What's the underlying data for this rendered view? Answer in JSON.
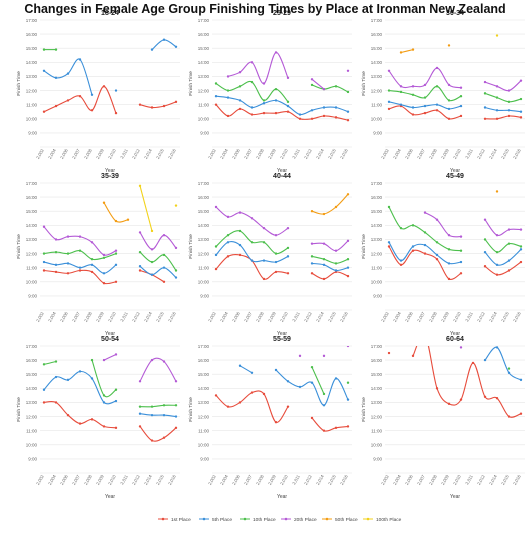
{
  "title": "Changes in Female Age Group Finishing Times by Place at Ironman New Zealand",
  "chart_data": {
    "type": "line",
    "title": "Changes in Female Age Group Finishing Times by Place at Ironman New Zealand",
    "ylabel": "Finish Time",
    "xlabel": "Year",
    "x": [
      "2,002",
      "2,004",
      "2,006",
      "2,007",
      "2,008",
      "2,009",
      "2,010",
      "2,011",
      "2,012",
      "2,014",
      "2,015",
      "2,016"
    ],
    "yticks": [
      "9:00",
      "10:00",
      "11:00",
      "12:00",
      "13:00",
      "14:00",
      "15:00",
      "16:00",
      "17:00"
    ],
    "ylim": [
      8,
      17
    ],
    "legend_position": "bottom",
    "series_meta": [
      {
        "name": "1st Place",
        "color": "#e74c3c"
      },
      {
        "name": "5th Place",
        "color": "#3a8fd9"
      },
      {
        "name": "10th Place",
        "color": "#4cbf4c"
      },
      {
        "name": "20th Place",
        "color": "#b45ad6"
      },
      {
        "name": "50th Place",
        "color": "#f39c12"
      },
      {
        "name": "100th Place",
        "color": "#f2d21b"
      }
    ],
    "panels": [
      {
        "title": "18-24",
        "series": {
          "1st Place": [
            10.5,
            10.9,
            11.3,
            11.6,
            10.6,
            12.3,
            10.4,
            null,
            11.0,
            10.8,
            10.9,
            11.2
          ],
          "5th Place": [
            13.4,
            12.9,
            13.2,
            14.2,
            11.7,
            null,
            12.0,
            null,
            null,
            14.9,
            15.6,
            15.1
          ],
          "10th Place": [
            14.9,
            14.9,
            null,
            null,
            null,
            null,
            null,
            null,
            null,
            null,
            null,
            null
          ],
          "20th Place": [],
          "50th Place": [],
          "100th Place": []
        }
      },
      {
        "title": "25-29",
        "series": {
          "1st Place": [
            11.0,
            10.2,
            10.7,
            10.3,
            10.4,
            10.4,
            10.5,
            10.0,
            10.0,
            10.2,
            10.1,
            9.9
          ],
          "5th Place": [
            11.6,
            11.5,
            11.3,
            10.8,
            11.1,
            11.3,
            10.9,
            10.3,
            10.6,
            10.8,
            10.8,
            10.5
          ],
          "10th Place": [
            12.5,
            12.0,
            12.3,
            12.6,
            11.3,
            12.1,
            11.2,
            null,
            12.4,
            12.1,
            12.3,
            11.9
          ],
          "20th Place": [
            null,
            13.0,
            13.3,
            14.0,
            12.5,
            14.7,
            12.9,
            null,
            12.8,
            12.1,
            null,
            13.4
          ],
          "50th Place": [],
          "100th Place": []
        }
      },
      {
        "title": "30-34",
        "series": {
          "1st Place": [
            10.7,
            10.9,
            10.3,
            10.4,
            10.6,
            10.0,
            10.2,
            null,
            10.0,
            10.0,
            10.2,
            10.1
          ],
          "5th Place": [
            11.2,
            11.0,
            10.8,
            10.9,
            11.0,
            10.7,
            10.9,
            null,
            10.8,
            10.6,
            10.6,
            10.5
          ],
          "10th Place": [
            12.0,
            11.9,
            11.7,
            11.5,
            12.3,
            11.3,
            11.6,
            null,
            11.8,
            11.5,
            11.2,
            11.4
          ],
          "20th Place": [
            13.4,
            12.3,
            12.3,
            12.4,
            13.6,
            12.4,
            12.2,
            null,
            12.6,
            12.3,
            12.0,
            12.7
          ],
          "50th Place": [
            null,
            14.7,
            14.9,
            null,
            null,
            15.2,
            null,
            null,
            null,
            null,
            null,
            null
          ],
          "100th Place": [
            null,
            null,
            null,
            null,
            null,
            null,
            null,
            null,
            null,
            15.9,
            null,
            null
          ]
        }
      },
      {
        "title": "35-39",
        "series": {
          "1st Place": [
            10.8,
            10.7,
            10.6,
            10.8,
            10.7,
            9.9,
            10.0,
            null,
            10.8,
            10.5,
            10.0,
            null
          ],
          "5th Place": [
            11.4,
            11.2,
            11.3,
            11.0,
            11.2,
            10.6,
            11.2,
            null,
            11.1,
            10.5,
            11.0,
            10.3
          ],
          "10th Place": [
            12.0,
            12.1,
            12.0,
            12.2,
            11.6,
            11.7,
            12.0,
            null,
            12.1,
            11.4,
            11.9,
            10.8
          ],
          "20th Place": [
            13.9,
            13.0,
            13.2,
            13.2,
            12.8,
            11.9,
            12.2,
            null,
            13.5,
            12.3,
            13.3,
            12.4
          ],
          "50th Place": [
            null,
            null,
            null,
            null,
            null,
            15.6,
            14.3,
            14.4,
            null,
            null,
            null,
            null
          ],
          "100th Place": [
            null,
            null,
            null,
            null,
            null,
            null,
            null,
            null,
            16.8,
            13.6,
            null,
            15.4
          ]
        }
      },
      {
        "title": "40-44",
        "series": {
          "1st Place": [
            10.9,
            11.8,
            11.9,
            11.5,
            10.2,
            10.7,
            10.6,
            null,
            10.6,
            10.2,
            10.7,
            10.4
          ],
          "5th Place": [
            11.9,
            12.8,
            12.6,
            11.5,
            11.5,
            11.4,
            11.8,
            null,
            11.3,
            11.2,
            10.8,
            11.0
          ],
          "10th Place": [
            12.5,
            13.3,
            13.6,
            12.8,
            12.8,
            12.0,
            12.4,
            null,
            11.8,
            11.6,
            11.3,
            11.6
          ],
          "20th Place": [
            15.3,
            14.6,
            14.9,
            14.5,
            13.8,
            13.3,
            13.8,
            null,
            12.7,
            12.7,
            12.2,
            12.9
          ],
          "50th Place": [
            null,
            null,
            null,
            null,
            null,
            null,
            null,
            null,
            15.0,
            14.8,
            15.3,
            16.2
          ],
          "100th Place": []
        }
      },
      {
        "title": "45-49",
        "series": {
          "1st Place": [
            12.5,
            11.2,
            12.2,
            12.0,
            11.6,
            10.2,
            10.6,
            null,
            11.1,
            10.5,
            10.8,
            11.4
          ],
          "5th Place": [
            12.8,
            11.5,
            12.5,
            12.6,
            11.9,
            11.3,
            11.4,
            null,
            12.1,
            11.2,
            11.5,
            12.3
          ],
          "10th Place": [
            15.3,
            13.8,
            14.0,
            13.5,
            12.8,
            12.3,
            12.2,
            null,
            13.0,
            12.1,
            12.7,
            12.5
          ],
          "20th Place": [
            null,
            null,
            null,
            14.9,
            14.4,
            13.3,
            13.2,
            null,
            14.4,
            13.3,
            13.7,
            13.7
          ],
          "50th Place": [
            null,
            null,
            null,
            null,
            null,
            null,
            null,
            null,
            null,
            16.4,
            null,
            null
          ],
          "100th Place": []
        }
      },
      {
        "title": "50-54",
        "series": {
          "1st Place": [
            13.0,
            13.0,
            12.1,
            11.5,
            11.8,
            11.3,
            11.2,
            null,
            11.3,
            10.3,
            10.5,
            11.2
          ],
          "5th Place": [
            13.9,
            14.8,
            14.6,
            15.2,
            14.7,
            13.0,
            13.1,
            null,
            12.2,
            12.1,
            12.1,
            12.0
          ],
          "10th Place": [
            15.7,
            15.9,
            null,
            null,
            16.0,
            13.5,
            13.9,
            null,
            12.7,
            12.7,
            12.8,
            12.8
          ],
          "20th Place": [
            null,
            null,
            null,
            null,
            null,
            16.0,
            16.4,
            null,
            14.5,
            16.0,
            15.9,
            14.5
          ],
          "50th Place": [],
          "100th Place": []
        }
      },
      {
        "title": "55-59",
        "series": {
          "1st Place": [
            13.5,
            12.7,
            13.0,
            13.7,
            13.6,
            11.6,
            12.7,
            null,
            11.9,
            11.0,
            11.2,
            11.3
          ],
          "5th Place": [
            null,
            null,
            15.6,
            15.1,
            null,
            15.3,
            14.5,
            14.1,
            14.4,
            12.8,
            14.7,
            13.2
          ],
          "10th Place": [
            null,
            null,
            null,
            null,
            null,
            null,
            null,
            null,
            15.5,
            13.6,
            null,
            14.4
          ],
          "20th Place": [
            null,
            null,
            null,
            null,
            null,
            null,
            null,
            16.3,
            null,
            16.3,
            null,
            17.0
          ],
          "50th Place": [],
          "100th Place": []
        }
      },
      {
        "title": "60-64",
        "series": {
          "1st Place": [
            16.5,
            null,
            16.3,
            17.8,
            14.0,
            12.9,
            13.2,
            15.8,
            13.4,
            13.3,
            12.0,
            12.2
          ],
          "5th Place": [
            null,
            null,
            null,
            null,
            null,
            null,
            null,
            null,
            16.0,
            16.9,
            15.1,
            14.6
          ],
          "10th Place": [
            null,
            null,
            null,
            null,
            null,
            null,
            null,
            null,
            null,
            null,
            15.4,
            null
          ],
          "20th Place": [
            null,
            null,
            null,
            null,
            null,
            null,
            16.9,
            null,
            null,
            null,
            null,
            null
          ],
          "50th Place": [],
          "100th Place": []
        }
      }
    ]
  }
}
